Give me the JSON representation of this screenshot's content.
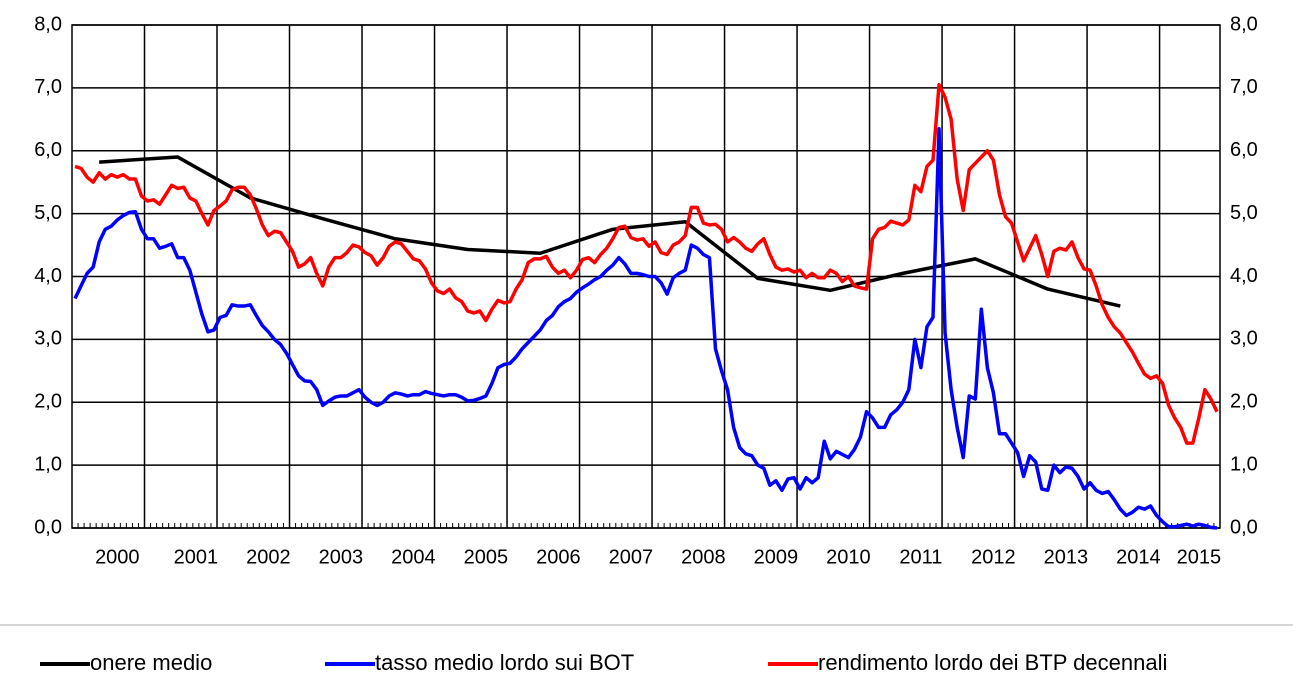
{
  "chart_data": {
    "type": "line",
    "categories": [
      null,
      null,
      null,
      null,
      null,
      null,
      null,
      "2000",
      null,
      null,
      null,
      null,
      null,
      null,
      null,
      null,
      null,
      null,
      null,
      null,
      "2001",
      null,
      null,
      null,
      null,
      null,
      null,
      null,
      null,
      null,
      null,
      null,
      "2002",
      null,
      null,
      null,
      null,
      null,
      null,
      null,
      null,
      null,
      null,
      null,
      "2003",
      null,
      null,
      null,
      null,
      null,
      null,
      null,
      null,
      null,
      null,
      null,
      "2004",
      null,
      null,
      null,
      null,
      null,
      null,
      null,
      null,
      null,
      null,
      null,
      "2005",
      null,
      null,
      null,
      null,
      null,
      null,
      null,
      null,
      null,
      null,
      null,
      "2006",
      null,
      null,
      null,
      null,
      null,
      null,
      null,
      null,
      null,
      null,
      null,
      "2007",
      null,
      null,
      null,
      null,
      null,
      null,
      null,
      null,
      null,
      null,
      null,
      "2008",
      null,
      null,
      null,
      null,
      null,
      null,
      null,
      null,
      null,
      null,
      null,
      "2009",
      null,
      null,
      null,
      null,
      null,
      null,
      null,
      null,
      null,
      null,
      null,
      "2010",
      null,
      null,
      null,
      null,
      null,
      null,
      null,
      null,
      null,
      null,
      null,
      "2011",
      null,
      null,
      null,
      null,
      null,
      null,
      null,
      null,
      null,
      null,
      null,
      "2012",
      null,
      null,
      null,
      null,
      null,
      null,
      null,
      null,
      null,
      null,
      null,
      "2013",
      null,
      null,
      null,
      null,
      null,
      null,
      null,
      null,
      null,
      null,
      null,
      "2014",
      null,
      null,
      null,
      null,
      null,
      null,
      null,
      null,
      null,
      "2015",
      null,
      null,
      null
    ],
    "series": [
      {
        "name": "onere medio",
        "color": "#000000",
        "span_gaps": true,
        "values": [
          null,
          null,
          null,
          null,
          5.82,
          null,
          null,
          null,
          null,
          null,
          null,
          null,
          null,
          null,
          null,
          null,
          null,
          5.9,
          null,
          null,
          null,
          null,
          null,
          null,
          null,
          null,
          null,
          null,
          null,
          5.25,
          null,
          null,
          null,
          null,
          null,
          null,
          null,
          null,
          null,
          null,
          null,
          4.92,
          null,
          null,
          null,
          null,
          null,
          null,
          null,
          null,
          null,
          null,
          null,
          4.6,
          null,
          null,
          null,
          null,
          null,
          null,
          null,
          null,
          null,
          null,
          null,
          4.43,
          null,
          null,
          null,
          null,
          null,
          null,
          null,
          null,
          null,
          null,
          null,
          4.37,
          null,
          null,
          null,
          null,
          null,
          null,
          null,
          null,
          null,
          null,
          null,
          4.75,
          null,
          null,
          null,
          null,
          null,
          null,
          null,
          null,
          null,
          null,
          null,
          4.87,
          null,
          null,
          null,
          null,
          null,
          null,
          null,
          null,
          null,
          null,
          null,
          3.97,
          null,
          null,
          null,
          null,
          null,
          null,
          null,
          null,
          null,
          null,
          null,
          3.78,
          null,
          null,
          null,
          null,
          null,
          null,
          null,
          null,
          null,
          null,
          null,
          4.05,
          null,
          null,
          null,
          null,
          null,
          null,
          null,
          null,
          null,
          null,
          null,
          4.28,
          null,
          null,
          null,
          null,
          null,
          null,
          null,
          null,
          null,
          null,
          null,
          3.8,
          null,
          null,
          null,
          null,
          null,
          null,
          null,
          null,
          null,
          null,
          null,
          3.53,
          null,
          null,
          null,
          null,
          null,
          null,
          null,
          null,
          null,
          null,
          null,
          null,
          null,
          null,
          null,
          null
        ]
      },
      {
        "name": "tasso medio lordo sui BOT",
        "color": "#0000ff",
        "values": [
          3.65,
          3.85,
          4.05,
          4.15,
          4.55,
          4.75,
          4.8,
          4.9,
          4.97,
          5.02,
          5.03,
          4.75,
          4.6,
          4.6,
          4.45,
          4.48,
          4.52,
          4.3,
          4.3,
          4.1,
          3.75,
          3.4,
          3.12,
          3.15,
          3.35,
          3.38,
          3.55,
          3.53,
          3.53,
          3.55,
          3.38,
          3.22,
          3.12,
          3.0,
          2.92,
          2.78,
          2.6,
          2.42,
          2.34,
          2.33,
          2.2,
          1.95,
          2.02,
          2.08,
          2.1,
          2.1,
          2.15,
          2.2,
          2.08,
          2.0,
          1.95,
          2.0,
          2.1,
          2.15,
          2.13,
          2.1,
          2.12,
          2.12,
          2.17,
          2.14,
          2.12,
          2.1,
          2.12,
          2.12,
          2.08,
          2.02,
          2.03,
          2.06,
          2.1,
          2.3,
          2.55,
          2.6,
          2.62,
          2.72,
          2.85,
          2.95,
          3.05,
          3.15,
          3.3,
          3.38,
          3.52,
          3.6,
          3.65,
          3.75,
          3.82,
          3.88,
          3.95,
          4.0,
          4.1,
          4.18,
          4.3,
          4.2,
          4.05,
          4.05,
          4.03,
          4.0,
          4.0,
          3.9,
          3.72,
          3.98,
          4.05,
          4.1,
          4.5,
          4.45,
          4.35,
          4.3,
          2.85,
          2.5,
          2.2,
          1.6,
          1.28,
          1.18,
          1.15,
          1.0,
          0.95,
          0.68,
          0.75,
          0.6,
          0.78,
          0.8,
          0.62,
          0.8,
          0.72,
          0.8,
          1.38,
          1.1,
          1.22,
          1.17,
          1.12,
          1.25,
          1.45,
          1.85,
          1.75,
          1.6,
          1.6,
          1.8,
          1.88,
          2.0,
          2.2,
          3.0,
          2.55,
          3.2,
          3.35,
          6.35,
          3.1,
          2.2,
          1.6,
          1.12,
          2.1,
          2.05,
          3.48,
          2.55,
          2.15,
          1.5,
          1.5,
          1.35,
          1.2,
          0.82,
          1.15,
          1.05,
          0.62,
          0.6,
          1.0,
          0.88,
          0.97,
          0.95,
          0.82,
          0.62,
          0.72,
          0.6,
          0.55,
          0.58,
          0.45,
          0.3,
          0.2,
          0.25,
          0.33,
          0.3,
          0.35,
          0.2,
          0.1,
          0.02,
          0.02,
          0.04,
          0.06,
          0.03,
          0.06,
          0.04,
          0.01,
          0.0
        ]
      },
      {
        "name": "rendimento lordo dei BTP decennali",
        "color": "#ff0000",
        "values": [
          5.75,
          5.72,
          5.58,
          5.5,
          5.65,
          5.55,
          5.62,
          5.58,
          5.62,
          5.55,
          5.55,
          5.28,
          5.2,
          5.22,
          5.15,
          5.3,
          5.45,
          5.4,
          5.42,
          5.25,
          5.2,
          5.0,
          4.82,
          5.05,
          5.12,
          5.2,
          5.38,
          5.42,
          5.42,
          5.3,
          5.08,
          4.82,
          4.65,
          4.72,
          4.7,
          4.55,
          4.4,
          4.15,
          4.2,
          4.3,
          4.05,
          3.85,
          4.15,
          4.3,
          4.3,
          4.38,
          4.5,
          4.47,
          4.38,
          4.33,
          4.18,
          4.3,
          4.48,
          4.55,
          4.52,
          4.4,
          4.28,
          4.25,
          4.12,
          3.9,
          3.77,
          3.73,
          3.8,
          3.66,
          3.6,
          3.45,
          3.42,
          3.45,
          3.3,
          3.48,
          3.62,
          3.58,
          3.6,
          3.8,
          3.95,
          4.22,
          4.28,
          4.28,
          4.32,
          4.15,
          4.05,
          4.1,
          3.98,
          4.1,
          4.27,
          4.3,
          4.22,
          4.35,
          4.45,
          4.6,
          4.78,
          4.8,
          4.62,
          4.58,
          4.6,
          4.48,
          4.55,
          4.38,
          4.35,
          4.5,
          4.55,
          4.65,
          5.1,
          5.1,
          4.85,
          4.82,
          4.83,
          4.75,
          4.55,
          4.62,
          4.55,
          4.45,
          4.4,
          4.52,
          4.6,
          4.35,
          4.15,
          4.1,
          4.12,
          4.07,
          4.1,
          3.98,
          4.05,
          3.98,
          3.98,
          4.1,
          4.05,
          3.92,
          4.0,
          3.85,
          3.82,
          3.8,
          4.6,
          4.75,
          4.78,
          4.88,
          4.85,
          4.82,
          4.9,
          5.45,
          5.35,
          5.75,
          5.85,
          7.05,
          6.85,
          6.5,
          5.55,
          5.05,
          5.7,
          5.8,
          5.9,
          6.0,
          5.85,
          5.3,
          4.95,
          4.85,
          4.55,
          4.25,
          4.45,
          4.65,
          4.35,
          4.0,
          4.4,
          4.45,
          4.42,
          4.55,
          4.3,
          4.12,
          4.1,
          3.85,
          3.55,
          3.35,
          3.2,
          3.1,
          2.95,
          2.8,
          2.62,
          2.45,
          2.38,
          2.42,
          2.3,
          1.95,
          1.75,
          1.6,
          1.35,
          1.35,
          1.75,
          2.2,
          2.05,
          1.85
        ]
      }
    ],
    "ylim": [
      0,
      8
    ],
    "yticks": [
      {
        "value": 0,
        "label": "0,0"
      },
      {
        "value": 1,
        "label": "1,0"
      },
      {
        "value": 2,
        "label": "2,0"
      },
      {
        "value": 3,
        "label": "3,0"
      },
      {
        "value": 4,
        "label": "4,0"
      },
      {
        "value": 5,
        "label": "5,0"
      },
      {
        "value": 6,
        "label": "6,0"
      },
      {
        "value": 7,
        "label": "7,0"
      },
      {
        "value": 8,
        "label": "8,0"
      }
    ],
    "y2lim": [
      0,
      8
    ],
    "y2ticks": [
      {
        "value": 0,
        "label": "0,0"
      },
      {
        "value": 1,
        "label": "1,0"
      },
      {
        "value": 2,
        "label": "2,0"
      },
      {
        "value": 3,
        "label": "3,0"
      },
      {
        "value": 4,
        "label": "4,0"
      },
      {
        "value": 5,
        "label": "5,0"
      },
      {
        "value": 6,
        "label": "6,0"
      },
      {
        "value": 7,
        "label": "7,0"
      },
      {
        "value": 8,
        "label": "8,0"
      }
    ],
    "grid": true,
    "legend": "bottom"
  }
}
